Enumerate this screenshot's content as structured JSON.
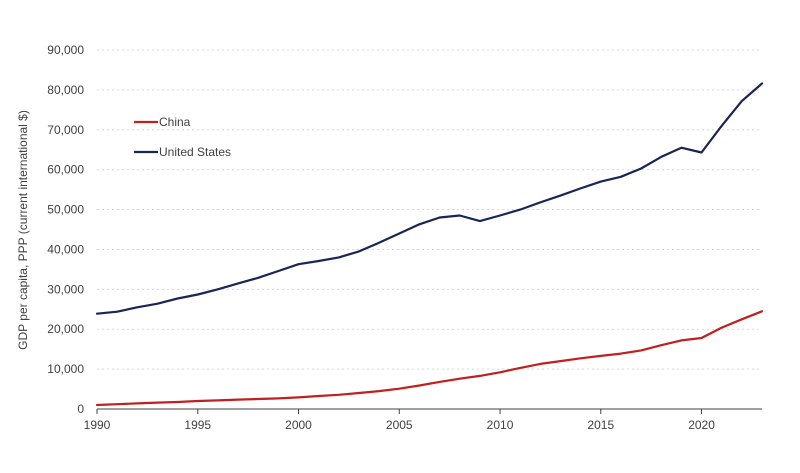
{
  "chart_data": {
    "type": "line",
    "ylabel": "GDP per capita, PPP (current international $)",
    "xlim": [
      1990,
      2023
    ],
    "ylim": [
      0,
      90000
    ],
    "x_ticks": [
      "1990",
      "1995",
      "2000",
      "2005",
      "2010",
      "2015",
      "2020"
    ],
    "y_ticks": [
      "0",
      "10,000",
      "20,000",
      "30,000",
      "40,000",
      "50,000",
      "60,000",
      "70,000",
      "80,000",
      "90,000"
    ],
    "grid": "horizontal dashed",
    "legend_position": "upper-left",
    "x": [
      1990,
      1991,
      1992,
      1993,
      1994,
      1995,
      1996,
      1997,
      1998,
      1999,
      2000,
      2001,
      2002,
      2003,
      2004,
      2005,
      2006,
      2007,
      2008,
      2009,
      2010,
      2011,
      2012,
      2013,
      2014,
      2015,
      2016,
      2017,
      2018,
      2019,
      2020,
      2021,
      2022,
      2023
    ],
    "series": [
      {
        "name": "China",
        "color": "#c0201f",
        "values": [
          1000,
          1200,
          1400,
          1600,
          1750,
          2000,
          2150,
          2350,
          2500,
          2650,
          2900,
          3250,
          3550,
          4000,
          4500,
          5100,
          5900,
          6800,
          7600,
          8300,
          9200,
          10300,
          11300,
          12000,
          12700,
          13300,
          13900,
          14700,
          16000,
          17200,
          17800,
          20400,
          22500,
          24500
        ]
      },
      {
        "name": "United States",
        "color": "#1a2456",
        "values": [
          23900,
          24400,
          25500,
          26400,
          27700,
          28700,
          30000,
          31500,
          32900,
          34600,
          36300,
          37100,
          38000,
          39500,
          41700,
          44000,
          46300,
          48000,
          48500,
          47100,
          48500,
          50000,
          51800,
          53500,
          55300,
          57000,
          58200,
          60300,
          63200,
          65500,
          64300,
          71000,
          77200,
          81600
        ]
      }
    ]
  }
}
